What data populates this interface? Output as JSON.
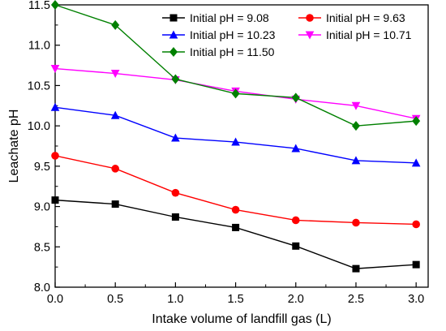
{
  "chart_data": {
    "type": "line",
    "xlabel": "Intake volume of landfill gas (L)",
    "ylabel": "Leachate pH",
    "xlim": [
      0.0,
      3.1
    ],
    "ylim": [
      8.0,
      11.5
    ],
    "x_ticks": [
      "0.0",
      "0.5",
      "1.0",
      "1.5",
      "2.0",
      "2.5",
      "3.0"
    ],
    "y_ticks": [
      "8.0",
      "8.5",
      "9.0",
      "9.5",
      "10.0",
      "10.5",
      "11.0",
      "11.5"
    ],
    "x": [
      0.0,
      0.5,
      1.0,
      1.5,
      2.0,
      2.5,
      3.0
    ],
    "grid": false,
    "legend_position": "top-right",
    "series": [
      {
        "name": "Initial pH = 9.08",
        "color": "#000000",
        "marker": "square",
        "values": [
          9.08,
          9.03,
          8.87,
          8.74,
          8.51,
          8.23,
          8.28
        ]
      },
      {
        "name": "Initial pH = 9.63",
        "color": "#ff0000",
        "marker": "circle",
        "values": [
          9.63,
          9.47,
          9.17,
          8.96,
          8.83,
          8.8,
          8.78
        ]
      },
      {
        "name": "Initial pH = 10.23",
        "color": "#0000ff",
        "marker": "triangle-up",
        "values": [
          10.23,
          10.13,
          9.85,
          9.8,
          9.72,
          9.57,
          9.54
        ]
      },
      {
        "name": "Initial pH = 10.71",
        "color": "#ff00ff",
        "marker": "triangle-down",
        "values": [
          10.71,
          10.65,
          10.57,
          10.43,
          10.33,
          10.25,
          10.09
        ]
      },
      {
        "name": "Initial pH = 11.50",
        "color": "#008000",
        "marker": "diamond",
        "values": [
          11.5,
          11.25,
          10.58,
          10.4,
          10.35,
          10.0,
          10.06
        ]
      }
    ]
  }
}
